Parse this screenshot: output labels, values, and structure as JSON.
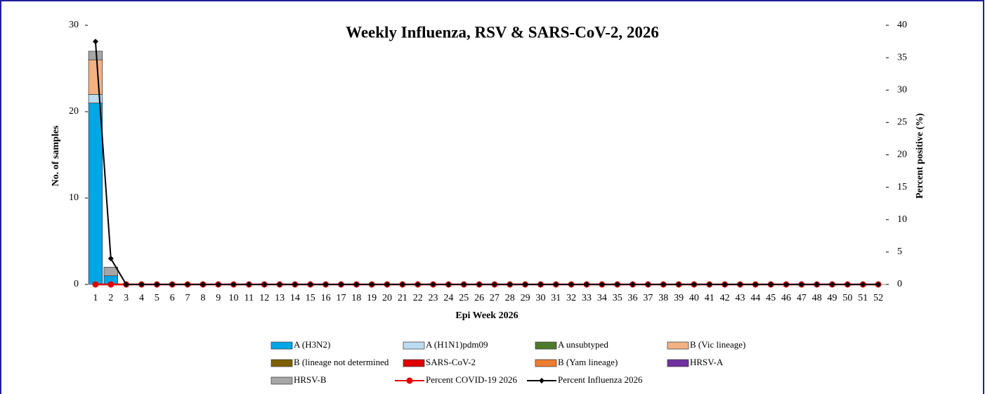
{
  "chart_data": {
    "type": "bar",
    "title": "Weekly Influenza, RSV & SARS-CoV-2, 2026",
    "x_label": "Epi Week 2026",
    "y_label": "No. of samples",
    "y2_label": "Percent positive (%)",
    "categories": [
      "1",
      "2",
      "3",
      "4",
      "5",
      "6",
      "7",
      "8",
      "9",
      "10",
      "11",
      "12",
      "13",
      "14",
      "15",
      "16",
      "17",
      "18",
      "19",
      "20",
      "21",
      "22",
      "23",
      "24",
      "25",
      "26",
      "27",
      "28",
      "29",
      "30",
      "31",
      "32",
      "33",
      "34",
      "35",
      "36",
      "37",
      "38",
      "39",
      "40",
      "41",
      "42",
      "43",
      "44",
      "45",
      "46",
      "47",
      "48",
      "49",
      "50",
      "51",
      "52"
    ],
    "ylim": [
      0,
      30
    ],
    "yticks": [
      0,
      10,
      20,
      30
    ],
    "y2lim": [
      0,
      40
    ],
    "y2ticks": [
      0,
      5,
      10,
      15,
      20,
      25,
      30,
      35,
      40
    ],
    "stacked": true,
    "series": [
      {
        "name": "A (H3N2)",
        "type": "bar",
        "color": "#00a6e6",
        "values": [
          21,
          1,
          0,
          0,
          0,
          0,
          0,
          0,
          0,
          0,
          0,
          0,
          0,
          0,
          0,
          0,
          0,
          0,
          0,
          0,
          0,
          0,
          0,
          0,
          0,
          0,
          0,
          0,
          0,
          0,
          0,
          0,
          0,
          0,
          0,
          0,
          0,
          0,
          0,
          0,
          0,
          0,
          0,
          0,
          0,
          0,
          0,
          0,
          0,
          0,
          0,
          0
        ]
      },
      {
        "name": "A (H1N1)pdm09",
        "type": "bar",
        "color": "#bcdcf2",
        "values": [
          1,
          0,
          0,
          0,
          0,
          0,
          0,
          0,
          0,
          0,
          0,
          0,
          0,
          0,
          0,
          0,
          0,
          0,
          0,
          0,
          0,
          0,
          0,
          0,
          0,
          0,
          0,
          0,
          0,
          0,
          0,
          0,
          0,
          0,
          0,
          0,
          0,
          0,
          0,
          0,
          0,
          0,
          0,
          0,
          0,
          0,
          0,
          0,
          0,
          0,
          0,
          0
        ]
      },
      {
        "name": "A unsubtyped",
        "type": "bar",
        "color": "#4e7a2e",
        "values": [
          0,
          0,
          0,
          0,
          0,
          0,
          0,
          0,
          0,
          0,
          0,
          0,
          0,
          0,
          0,
          0,
          0,
          0,
          0,
          0,
          0,
          0,
          0,
          0,
          0,
          0,
          0,
          0,
          0,
          0,
          0,
          0,
          0,
          0,
          0,
          0,
          0,
          0,
          0,
          0,
          0,
          0,
          0,
          0,
          0,
          0,
          0,
          0,
          0,
          0,
          0,
          0
        ]
      },
      {
        "name": "B (Vic lineage)",
        "type": "bar",
        "color": "#f4b183",
        "values": [
          4,
          0,
          0,
          0,
          0,
          0,
          0,
          0,
          0,
          0,
          0,
          0,
          0,
          0,
          0,
          0,
          0,
          0,
          0,
          0,
          0,
          0,
          0,
          0,
          0,
          0,
          0,
          0,
          0,
          0,
          0,
          0,
          0,
          0,
          0,
          0,
          0,
          0,
          0,
          0,
          0,
          0,
          0,
          0,
          0,
          0,
          0,
          0,
          0,
          0,
          0,
          0
        ]
      },
      {
        "name": "B (lineage not determined",
        "type": "bar",
        "color": "#7f6000",
        "values": [
          0,
          0,
          0,
          0,
          0,
          0,
          0,
          0,
          0,
          0,
          0,
          0,
          0,
          0,
          0,
          0,
          0,
          0,
          0,
          0,
          0,
          0,
          0,
          0,
          0,
          0,
          0,
          0,
          0,
          0,
          0,
          0,
          0,
          0,
          0,
          0,
          0,
          0,
          0,
          0,
          0,
          0,
          0,
          0,
          0,
          0,
          0,
          0,
          0,
          0,
          0,
          0
        ]
      },
      {
        "name": "SARS-CoV-2",
        "type": "bar",
        "color": "#e00000",
        "values": [
          0,
          0,
          0,
          0,
          0,
          0,
          0,
          0,
          0,
          0,
          0,
          0,
          0,
          0,
          0,
          0,
          0,
          0,
          0,
          0,
          0,
          0,
          0,
          0,
          0,
          0,
          0,
          0,
          0,
          0,
          0,
          0,
          0,
          0,
          0,
          0,
          0,
          0,
          0,
          0,
          0,
          0,
          0,
          0,
          0,
          0,
          0,
          0,
          0,
          0,
          0,
          0
        ]
      },
      {
        "name": "B (Yam lineage)",
        "type": "bar",
        "color": "#ed7d31",
        "values": [
          0,
          0,
          0,
          0,
          0,
          0,
          0,
          0,
          0,
          0,
          0,
          0,
          0,
          0,
          0,
          0,
          0,
          0,
          0,
          0,
          0,
          0,
          0,
          0,
          0,
          0,
          0,
          0,
          0,
          0,
          0,
          0,
          0,
          0,
          0,
          0,
          0,
          0,
          0,
          0,
          0,
          0,
          0,
          0,
          0,
          0,
          0,
          0,
          0,
          0,
          0,
          0
        ]
      },
      {
        "name": "HRSV-A",
        "type": "bar",
        "color": "#7030a0",
        "values": [
          0,
          0,
          0,
          0,
          0,
          0,
          0,
          0,
          0,
          0,
          0,
          0,
          0,
          0,
          0,
          0,
          0,
          0,
          0,
          0,
          0,
          0,
          0,
          0,
          0,
          0,
          0,
          0,
          0,
          0,
          0,
          0,
          0,
          0,
          0,
          0,
          0,
          0,
          0,
          0,
          0,
          0,
          0,
          0,
          0,
          0,
          0,
          0,
          0,
          0,
          0,
          0
        ]
      },
      {
        "name": "HRSV-B",
        "type": "bar",
        "color": "#a6a6a6",
        "values": [
          1,
          1,
          0,
          0,
          0,
          0,
          0,
          0,
          0,
          0,
          0,
          0,
          0,
          0,
          0,
          0,
          0,
          0,
          0,
          0,
          0,
          0,
          0,
          0,
          0,
          0,
          0,
          0,
          0,
          0,
          0,
          0,
          0,
          0,
          0,
          0,
          0,
          0,
          0,
          0,
          0,
          0,
          0,
          0,
          0,
          0,
          0,
          0,
          0,
          0,
          0,
          0
        ]
      },
      {
        "name": "Percent COVID-19 2026",
        "type": "line",
        "axis": "y2",
        "marker": "circle",
        "color": "#e00000",
        "values": [
          0,
          0,
          0,
          0,
          0,
          0,
          0,
          0,
          0,
          0,
          0,
          0,
          0,
          0,
          0,
          0,
          0,
          0,
          0,
          0,
          0,
          0,
          0,
          0,
          0,
          0,
          0,
          0,
          0,
          0,
          0,
          0,
          0,
          0,
          0,
          0,
          0,
          0,
          0,
          0,
          0,
          0,
          0,
          0,
          0,
          0,
          0,
          0,
          0,
          0,
          0,
          0
        ]
      },
      {
        "name": "Percent Influenza 2026",
        "type": "line",
        "axis": "y2",
        "marker": "diamond",
        "color": "#000000",
        "values": [
          37.5,
          4,
          0,
          0,
          0,
          0,
          0,
          0,
          0,
          0,
          0,
          0,
          0,
          0,
          0,
          0,
          0,
          0,
          0,
          0,
          0,
          0,
          0,
          0,
          0,
          0,
          0,
          0,
          0,
          0,
          0,
          0,
          0,
          0,
          0,
          0,
          0,
          0,
          0,
          0,
          0,
          0,
          0,
          0,
          0,
          0,
          0,
          0,
          0,
          0,
          0,
          0
        ]
      }
    ]
  }
}
